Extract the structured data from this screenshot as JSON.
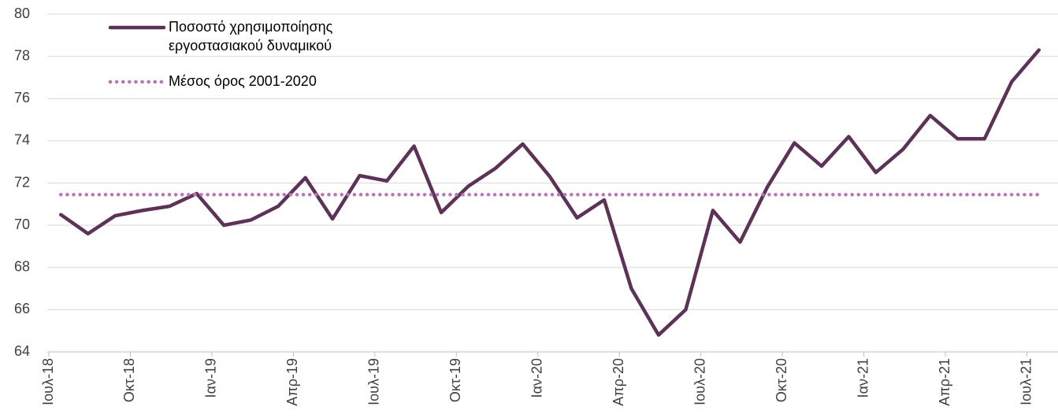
{
  "chart_data": {
    "type": "line",
    "categories": [
      "Ιουλ-18",
      null,
      null,
      "Οκτ-18",
      null,
      null,
      "Ιαν-19",
      null,
      null,
      "Απρ-19",
      null,
      null,
      "Ιουλ-19",
      null,
      null,
      "Οκτ-19",
      null,
      null,
      "Ιαν-20",
      null,
      null,
      "Απρ-20",
      null,
      null,
      "Ιουλ-20",
      null,
      null,
      "Οκτ-20",
      null,
      null,
      "Ιαν-21",
      null,
      null,
      "Απρ-21",
      null,
      null,
      "Ιουλ-21"
    ],
    "series": [
      {
        "name": "Ποσοστό χρησιμοποίησης εργοστασιακού δυναμικού",
        "color": "#5c3356",
        "style": "solid",
        "values": [
          70.5,
          69.6,
          70.45,
          70.7,
          70.9,
          71.5,
          70.0,
          70.25,
          70.9,
          72.25,
          70.3,
          72.35,
          72.1,
          73.75,
          70.6,
          71.85,
          72.7,
          73.85,
          72.3,
          70.35,
          71.2,
          67.0,
          64.8,
          66.0,
          70.7,
          69.2,
          71.8,
          73.9,
          72.8,
          74.2,
          72.5,
          73.6,
          75.2,
          74.1,
          74.1,
          76.8,
          78.3
        ]
      },
      {
        "name": "Μέσος όρος 2001-2020",
        "color": "#b877b5",
        "style": "dotted",
        "values": [
          71.45,
          71.45,
          71.45,
          71.45,
          71.45,
          71.45,
          71.45,
          71.45,
          71.45,
          71.45,
          71.45,
          71.45,
          71.45,
          71.45,
          71.45,
          71.45,
          71.45,
          71.45,
          71.45,
          71.45,
          71.45,
          71.45,
          71.45,
          71.45,
          71.45,
          71.45,
          71.45,
          71.45,
          71.45,
          71.45,
          71.45,
          71.45,
          71.45,
          71.45,
          71.45,
          71.45,
          71.45
        ]
      }
    ],
    "ylim": [
      64,
      80
    ],
    "yticks": [
      64,
      66,
      68,
      70,
      72,
      74,
      76,
      78,
      80
    ],
    "grid": true,
    "legend": "top-left"
  }
}
